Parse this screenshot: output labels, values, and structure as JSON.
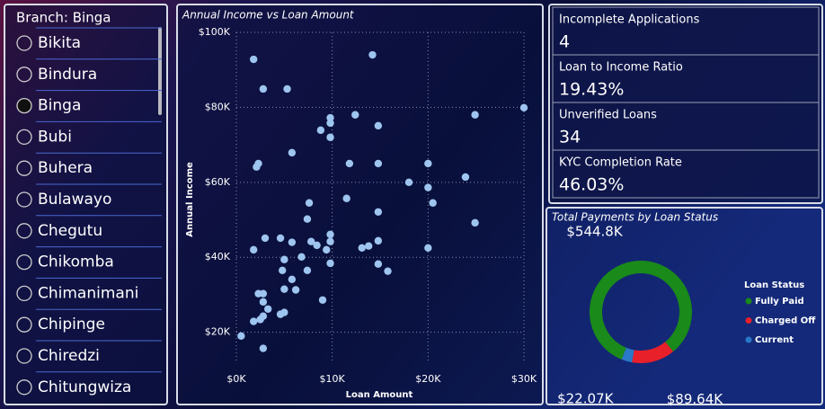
{
  "slicer": {
    "title": "Branch: Binga",
    "items": [
      "Bikita",
      "Bindura",
      "Binga",
      "Bubi",
      "Buhera",
      "Bulawayo",
      "Chegutu",
      "Chikomba",
      "Chimanimani",
      "Chipinge",
      "Chiredzi",
      "Chitungwiza"
    ],
    "selected": 2
  },
  "cards": [
    {
      "label": "Incomplete Applications",
      "value": "4"
    },
    {
      "label": "Loan to Income Ratio",
      "value": "19.43%"
    },
    {
      "label": "Unverified Loans",
      "value": "34"
    },
    {
      "label": "KYC Completion Rate",
      "value": "46.03%"
    }
  ],
  "chart_data": [
    {
      "type": "scatter",
      "title": "Annual Income vs Loan Amount",
      "x_label": "Loan Amount",
      "y_label": "Annual Income",
      "color": "#9ec5f0",
      "grid": true,
      "xlim": [
        0,
        30000
      ],
      "ylim": [
        12000,
        100000
      ],
      "xticks": [
        {
          "value": 0,
          "label": "$0K"
        },
        {
          "value": 10000,
          "label": "$10K"
        },
        {
          "value": 20000,
          "label": "$20K"
        },
        {
          "value": 30000,
          "label": "$30K"
        }
      ],
      "yticks": [
        {
          "value": 20000,
          "label": "$20K"
        },
        {
          "value": 40000,
          "label": "$40K"
        },
        {
          "value": 60000,
          "label": "$60K"
        },
        {
          "value": 80000,
          "label": "$80K"
        },
        {
          "value": 100000,
          "label": "$100K"
        }
      ],
      "x": [
        1800,
        2800,
        5300,
        14200,
        30000,
        24900,
        9800,
        9800,
        12400,
        14800,
        8800,
        9800,
        5800,
        2300,
        2100,
        11800,
        14800,
        20000,
        23900,
        18000,
        20000,
        20500,
        11500,
        7600,
        14800,
        7400,
        24900,
        9800,
        9800,
        3000,
        4600,
        5800,
        7800,
        8400,
        1800,
        9400,
        13100,
        13800,
        14800,
        20000,
        6800,
        5000,
        9800,
        14800,
        15800,
        4800,
        7400,
        5800,
        5000,
        6200,
        2300,
        2800,
        2800,
        9000,
        3300,
        5000,
        4600,
        2800,
        2500,
        1800,
        500,
        2800
      ],
      "values": [
        92800,
        84900,
        84900,
        94000,
        79900,
        78000,
        77200,
        75800,
        78000,
        75100,
        73900,
        72000,
        67900,
        65000,
        64100,
        65000,
        65000,
        65000,
        61400,
        60000,
        58600,
        54500,
        55700,
        54500,
        52100,
        50200,
        49200,
        46100,
        44200,
        45100,
        45100,
        44000,
        44200,
        43200,
        42000,
        42000,
        42500,
        43000,
        44400,
        42500,
        40100,
        39400,
        38400,
        38200,
        36300,
        36500,
        36500,
        34100,
        31500,
        31300,
        30300,
        30300,
        28100,
        28600,
        26200,
        25300,
        24800,
        24300,
        23400,
        22900,
        19000,
        15700
      ]
    },
    {
      "type": "donut",
      "title": "Total Payments by Loan Status",
      "legend_title": "Loan Status",
      "legend": "right",
      "categories": [
        "Fully Paid",
        "Charged Off",
        "Current"
      ],
      "values": [
        544.8,
        89.64,
        22.07
      ],
      "value_labels": [
        "$544.8K",
        "$89.64K",
        "$22.07K"
      ],
      "colors": [
        "#1a8a1a",
        "#e8202a",
        "#2a78c8"
      ]
    }
  ]
}
